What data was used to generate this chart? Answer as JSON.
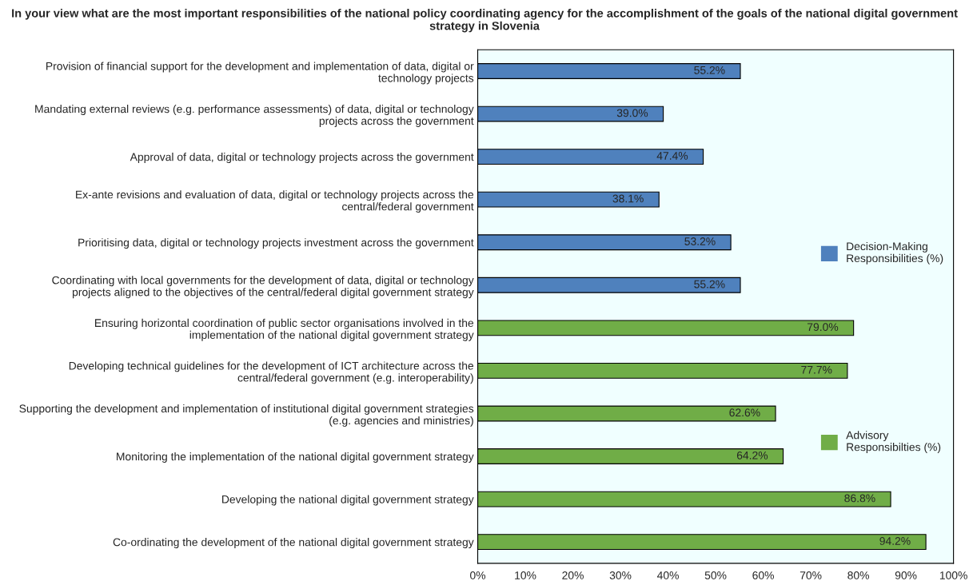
{
  "chart_data": {
    "type": "bar",
    "orientation": "horizontal",
    "title": "In your view what are the most important responsibilities of the national policy coordinating agency for the accomplishment of the goals of the national digital government strategy in Slovenia",
    "categories": [
      "Provision of financial support for the development and implementation of data, digital or technology projects",
      "Mandating external reviews (e.g. performance assessments) of data, digital or technology projects across the government",
      "Approval of data, digital or technology projects across the government",
      "Ex-ante revisions and evaluation of data, digital or technology projects across the central/federal government",
      "Prioritising data, digital or technology projects investment across the government",
      "Coordinating with local governments for the development of data, digital or technology projects aligned to the objectives of the central/federal digital government strategy",
      "Ensuring horizontal coordination of public sector organisations involved in the implementation of the national digital government strategy",
      "Developing technical guidelines for the development of ICT architecture across the central/federal government (e.g. interoperability)",
      "Supporting the development and implementation of institutional digital government strategies (e.g. agencies and ministries)",
      "Monitoring the implementation of the national digital government strategy",
      "Developing the national digital government strategy",
      "Co-ordinating the development of the national digital government strategy"
    ],
    "series": [
      {
        "name": "Decision-Making Responsibilities (%)",
        "color": "#4f81bd",
        "values": [
          55.2,
          39.0,
          47.4,
          38.1,
          53.2,
          55.2,
          null,
          null,
          null,
          null,
          null,
          null
        ],
        "value_labels": [
          "55.2%",
          "39.0%",
          "47.4%",
          "38.1%",
          "53.2%",
          "55.2%",
          null,
          null,
          null,
          null,
          null,
          null
        ]
      },
      {
        "name": "Advisory Responsibilties (%)",
        "color": "#70ad47",
        "values": [
          null,
          null,
          null,
          null,
          null,
          null,
          79.0,
          77.7,
          62.6,
          64.2,
          86.8,
          94.2
        ],
        "value_labels": [
          null,
          null,
          null,
          null,
          null,
          null,
          "79.0%",
          "77.7%",
          "62.6%",
          "64.2%",
          "86.8%",
          "94.2%"
        ]
      }
    ],
    "xlim": [
      0,
      100
    ],
    "xticks": [
      {
        "value": 0,
        "label": "0%"
      },
      {
        "value": 10,
        "label": "10%"
      },
      {
        "value": 20,
        "label": "20%"
      },
      {
        "value": 30,
        "label": "30%"
      },
      {
        "value": 40,
        "label": "40%"
      },
      {
        "value": 50,
        "label": "50%"
      },
      {
        "value": 60,
        "label": "60%"
      },
      {
        "value": 70,
        "label": "70%"
      },
      {
        "value": 80,
        "label": "80%"
      },
      {
        "value": 90,
        "label": "90%"
      },
      {
        "value": 100,
        "label": "100%"
      }
    ],
    "legend": "right",
    "grid": false
  }
}
